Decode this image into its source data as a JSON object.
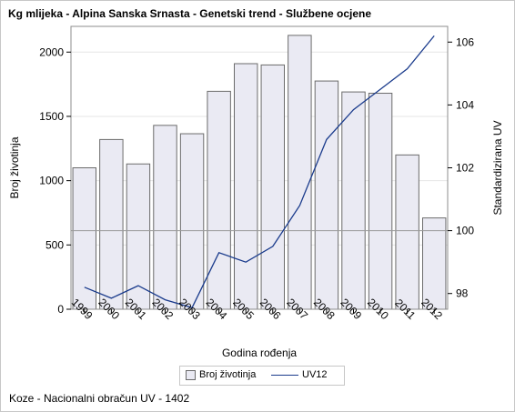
{
  "title": "Kg mlijeka - Alpina Sanska Srnasta - Genetski trend - Službene ocjene",
  "footnote": "Koze - Nacionalni obračun UV - 1402",
  "chart_data": {
    "type": "bar",
    "categories": [
      "1999",
      "2000",
      "2001",
      "2002",
      "2003",
      "2004",
      "2005",
      "2006",
      "2007",
      "2008",
      "2009",
      "2010",
      "2011",
      "2012"
    ],
    "series": [
      {
        "name": "Broj životinja",
        "type": "bar",
        "axis": "left",
        "values": [
          1100,
          1320,
          1130,
          1430,
          1365,
          1695,
          1910,
          1900,
          2130,
          1775,
          1690,
          1680,
          1200,
          710
        ]
      },
      {
        "name": "UV12",
        "type": "line",
        "axis": "right",
        "values": [
          98.2,
          97.85,
          98.25,
          97.8,
          97.55,
          99.3,
          99.0,
          99.5,
          100.8,
          102.9,
          103.85,
          104.5,
          105.15,
          106.2
        ]
      }
    ],
    "xlabel": "Godina rođenja",
    "ylabel": "Broj životinja",
    "y2label": "Standardizirana UV",
    "ylim": [
      0,
      2200
    ],
    "y2lim": [
      97.5,
      106.5
    ],
    "yticks": [
      0,
      500,
      1000,
      1500,
      2000
    ],
    "y2ticks": [
      98,
      100,
      102,
      104,
      106
    ],
    "reference_line": {
      "axis": "right",
      "value": 100
    },
    "colors": {
      "bar_fill": "#eaeaf3",
      "bar_stroke": "#6b6b6b",
      "line": "#1a3b8c",
      "grid": "#e6e6e6",
      "ref": "#9a9a9a"
    },
    "legend": "bottom-center",
    "grid": true
  }
}
